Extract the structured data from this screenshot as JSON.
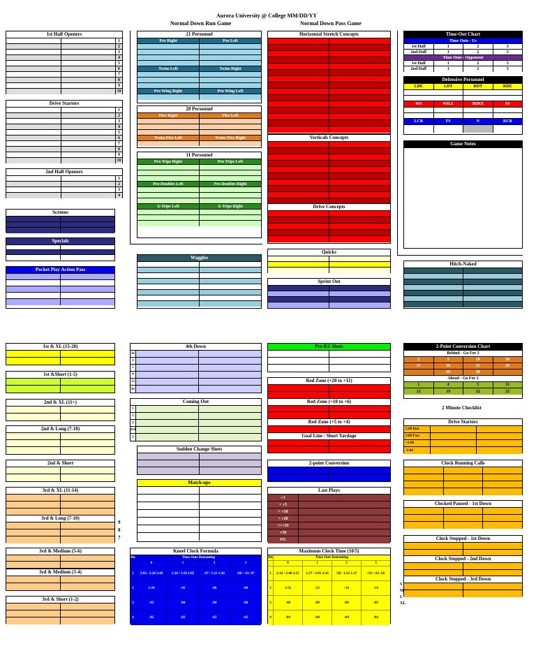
{
  "header": {
    "line1": "Aurora University @   College MM/DD/YY",
    "run_title": "Normal Down Run Game",
    "pass_title": "Normal Down Pass Game"
  },
  "colors": {
    "blue_bright": "#0000ee",
    "navy": "#2d2d80",
    "lilac": "#aaaaff",
    "teal_dark": "#1a6e8c",
    "sky": "#9ad7ea",
    "orange": "#e07a1e",
    "peach": "#fbd0a6",
    "green_dark": "#2a8a1e",
    "mint": "#ccffbb",
    "red": "#ff0000",
    "dark_red": "#c00000",
    "yellow": "#ffff00",
    "pale_yellow": "#ffffcc",
    "slate": "#2c5a64",
    "light_blue": "#99ccdd",
    "green_bright": "#00ee00",
    "lime": "#ccff33",
    "cream": "#ffffcc",
    "tan": "#ffcc88",
    "lavender": "#ccccff",
    "pink_lav": "#ccc3dd",
    "maroon": "#8e3a3a",
    "gold": "#ffbb00",
    "olive_green": "#99bb22"
  },
  "sections": {
    "first_half_openers": {
      "title": "1st Half Openers",
      "nums": [
        "1",
        "2",
        "3",
        "4",
        "5",
        "6",
        "7",
        "8",
        "9",
        "10"
      ]
    },
    "drive_starters": {
      "title": "Drive Starters",
      "nums": [
        "1",
        "2",
        "3",
        "4",
        "5",
        "6",
        "7",
        "8",
        "9",
        "10"
      ]
    },
    "second_half_openers": {
      "title": "2nd Half Openers",
      "nums": [
        "1",
        "2",
        "3",
        "4"
      ]
    },
    "screens": {
      "title": "Screens"
    },
    "specials": {
      "title": "Specials"
    },
    "pocket_play": {
      "title": "Pocket Play Action Pass"
    },
    "p21": {
      "title": "21 Personnel",
      "h1": [
        "Pro Right",
        "Pro Left"
      ],
      "h2": [
        "Twins Left",
        "Twins Right"
      ],
      "h3": [
        "Pro Wing Right",
        "Pro Wing Left"
      ]
    },
    "p20": {
      "title": "20 Personnel",
      "h1": [
        "Flex Right",
        "Flex Left"
      ],
      "h2": [
        "Twins Flex Left",
        "Twins Flex Right"
      ]
    },
    "p11": {
      "title": "11 Personnel",
      "h1": [
        "Pro Trips Right",
        "Pro Trips Left"
      ],
      "h2": [
        "Pro Doubles Left",
        "Pro Doubles Right"
      ],
      "h3": [
        "X-Trips Left",
        "X-Trips Right"
      ]
    },
    "waggles": {
      "title": "Waggles"
    },
    "horizontal": {
      "title": "Horizontal Stretch Concepts"
    },
    "verticals": {
      "title": "Verticals Concepts"
    },
    "drive_concepts": {
      "title": "Drive Concepts"
    },
    "quicks": {
      "title": "Quicks"
    },
    "sprint_out": {
      "title": "Sprint Out"
    },
    "timeout_chart": {
      "title": "Time-Out Chart",
      "us": "Time Outs - Us",
      "opp": "Time Outs - Opponent",
      "rows": [
        "1st Half",
        "2nd Half"
      ],
      "nums": [
        "1",
        "2",
        "3"
      ]
    },
    "defensive_personnel": {
      "title": "Defensive Personnel",
      "dl": [
        "LDE",
        "LDT",
        "RDT",
        "RDE"
      ],
      "lb": [
        "WS",
        "WILL",
        "MIKE",
        "SS"
      ],
      "db": [
        "LCB",
        "FS",
        "N",
        "RCB"
      ]
    },
    "game_notes": {
      "title": "Game Notes"
    },
    "hitch_naked": {
      "title": "Hitch-Naked"
    },
    "first_xl": {
      "title": "1st & XL (15-20)"
    },
    "first_short": {
      "title": "1st &Short (1-5)"
    },
    "second_xl": {
      "title": "2nd & XL (11+)"
    },
    "second_long": {
      "title": "2nd & Long (7-10)"
    },
    "second_short": {
      "title": "2nd & Short"
    },
    "third_xl": {
      "title": "3rd & XL (11-14)"
    },
    "third_long": {
      "title": "3rd & Long (7-10)",
      "side": [
        "9",
        "8",
        "7"
      ]
    },
    "third_med56": {
      "title": "3rd & Medium (5-6)"
    },
    "third_med34": {
      "title": "3rd & Medium (3-4)"
    },
    "third_short": {
      "title": "3rd & Short (1-2)"
    },
    "fourth_down": {
      "title": "4th Down",
      "nums": [
        "In",
        "1",
        "5",
        "9",
        "15",
        "In"
      ]
    },
    "coming_out": {
      "title": "Coming Out",
      "nums": [
        "1",
        "1",
        "2",
        "3rd",
        "3"
      ]
    },
    "sudden_change": {
      "title": "Sudden Change Shots"
    },
    "matchups": {
      "title": "Match-ups"
    },
    "kneel": {
      "title": "Kneel Clock Formula",
      "sub": "Time Outs Remaining",
      "dn": "Dn",
      "cols": [
        "0",
        "1",
        "2",
        "3"
      ],
      "rows": [
        {
          "d": "1",
          "v": [
            "2:05 / 2:20 2:44",
            "1:26 / 1:50 2:05",
            ":47 / 1:11 1:26",
            ":08 / :32 :47"
          ]
        },
        {
          "d": "2",
          "v": [
            "1:24",
            ":45",
            ":06",
            ":06"
          ]
        },
        {
          "d": "3",
          "v": [
            ":43",
            ":04",
            ":04",
            ":04"
          ]
        },
        {
          "d": "4",
          "v": [
            ":02",
            ":02",
            ":02",
            ":02"
          ]
        }
      ]
    },
    "pre_rz": {
      "title": "Pre-RZ Shots"
    },
    "rz_20_11": {
      "title": "Red Zone (+20 to +11)"
    },
    "rz_10_6": {
      "title": "Red Zone (+10 to +6)"
    },
    "rz_5_4": {
      "title": "Red Zone (+5 to +4)"
    },
    "goal_line": {
      "title": "Goal Line / Short Yardage"
    },
    "two_point": {
      "title": "2-point Conversion"
    },
    "last_plays": {
      "title": "Last Plays",
      "items": [
        "+1",
        "< +5",
        "< +10",
        "< +20",
        "<>+35",
        "+50",
        "FG"
      ]
    },
    "max_clock": {
      "title": "Maximum Clock Time (10/5)",
      "sub": "Time Outs Remaining",
      "dn": "Dn",
      "cols": [
        "0",
        "1",
        "2",
        "3"
      ],
      "rows": [
        {
          "d": "1",
          "v": [
            "2:16 / 2:40 2:55",
            "1:37 / 2:01 2:16",
            ":58 / 1:22 1:37",
            ":19 / :43 :58"
          ]
        },
        {
          "d": "2",
          "v": [
            "1:32",
            ":53",
            ":14",
            ":14"
          ]
        },
        {
          "d": "3",
          "v": [
            ":48",
            ":09",
            ":09",
            ":09"
          ]
        },
        {
          "d": "4",
          "v": [
            ":04",
            ":04",
            ":04",
            ":04"
          ]
        }
      ],
      "side": [
        "S",
        "M",
        "L",
        "XL"
      ]
    },
    "two_pt_chart": {
      "title": "2-Point Conversion Chart",
      "behind": "Behind - Go For 2",
      "ahead": "Ahead - Go For 2",
      "behind_rows": [
        [
          "2",
          "5",
          "10",
          "16"
        ],
        [
          "17",
          "18",
          "21",
          "25"
        ],
        [
          "",
          "26",
          "28",
          ""
        ]
      ],
      "ahead_rows": [
        [
          "1",
          "4",
          "5",
          "11"
        ],
        [
          "12",
          "19",
          "22",
          "25"
        ]
      ]
    },
    "two_min": {
      "title": "2 Minute Checklist"
    },
    "tm_drive_starters": {
      "title": "Drive Starters",
      "items": [
        "2:00 Run",
        "2:00 Pass",
        "+1:00",
        "-1:00"
      ]
    },
    "clock_running": {
      "title": "Clock Running Calls"
    },
    "clock_paused": {
      "title": "Clocked Paused - 1st Down"
    },
    "stopped1": {
      "title": "Clock Stopped - 1st Down"
    },
    "stopped2": {
      "title": "Clock Stopped - 2nd Down"
    },
    "stopped3": {
      "title": "Clock Stopped - 3rd Down"
    }
  }
}
